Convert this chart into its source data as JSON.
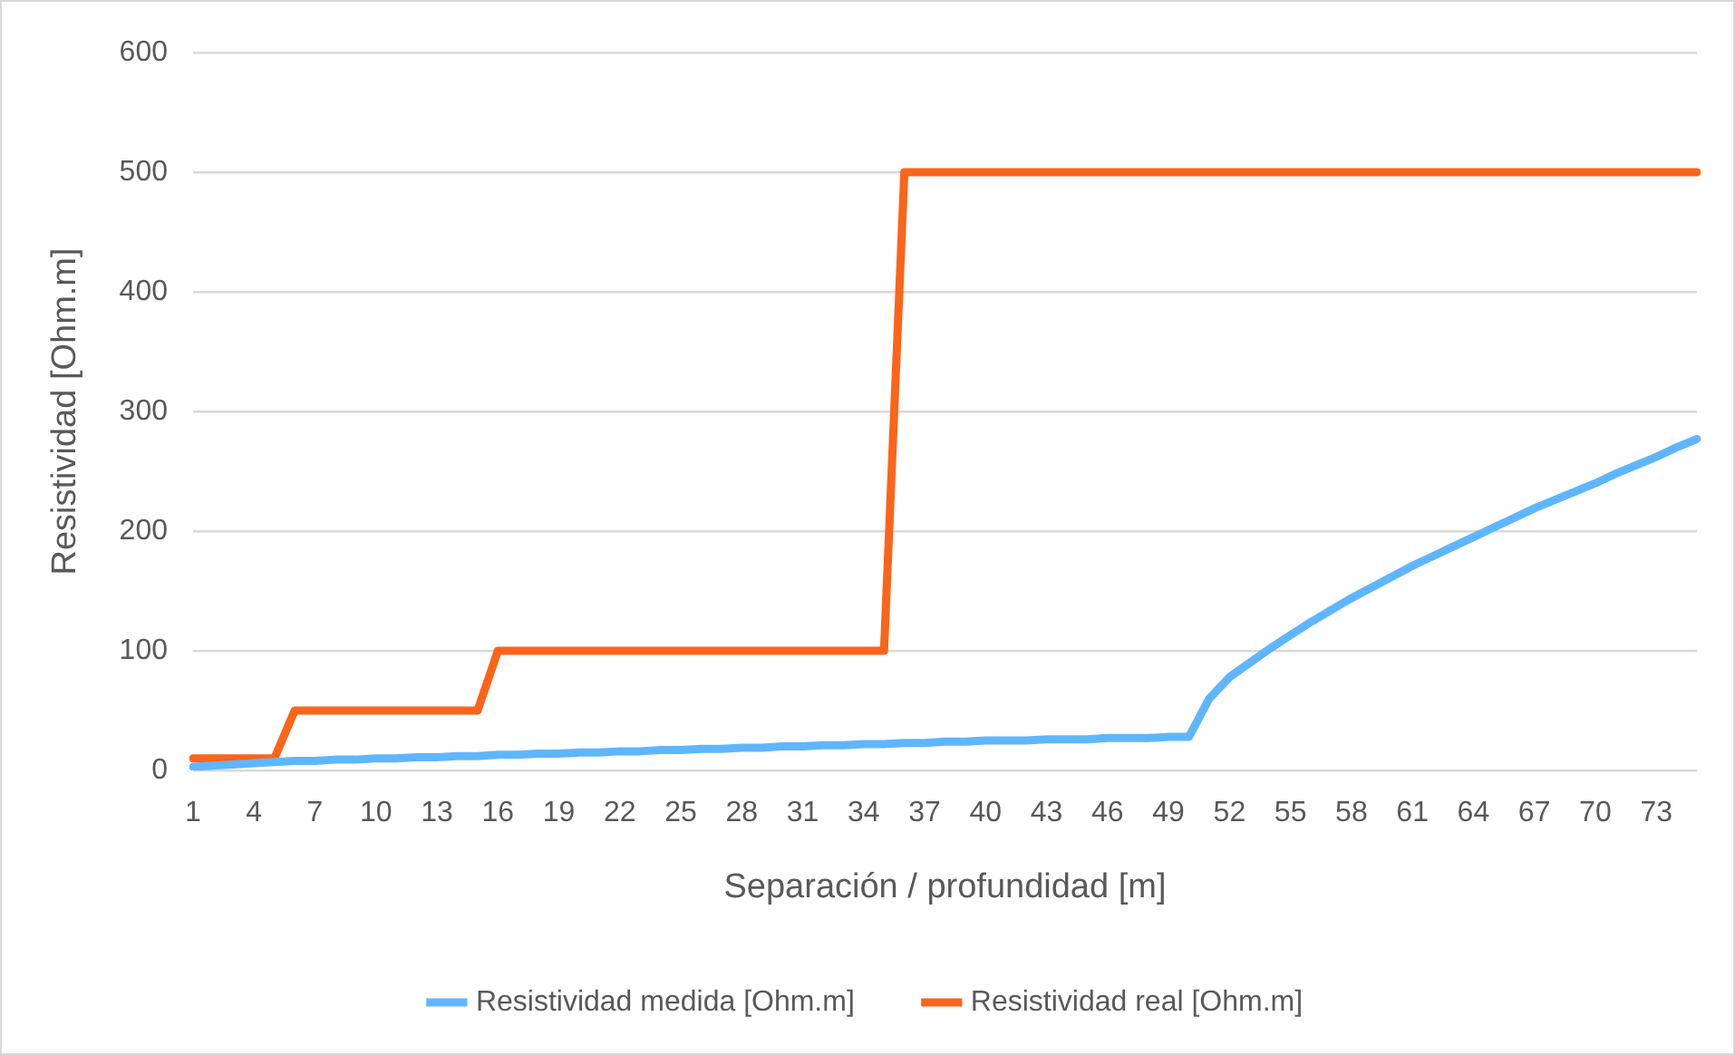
{
  "chart_data": {
    "type": "line",
    "xlabel": "Separación / profundidad [m]",
    "ylabel": "Resistividad [Ohm.m]",
    "categories": [
      "1",
      null,
      null,
      "4",
      null,
      null,
      "7",
      null,
      null,
      "10",
      null,
      null,
      "13",
      null,
      null,
      "16",
      null,
      null,
      "19",
      null,
      null,
      "22",
      null,
      null,
      "25",
      null,
      null,
      "28",
      null,
      null,
      "31",
      null,
      null,
      "34",
      null,
      null,
      "37",
      null,
      null,
      "40",
      null,
      null,
      "43",
      null,
      null,
      "46",
      null,
      null,
      "49",
      null,
      null,
      "52",
      null,
      null,
      "55",
      null,
      null,
      "58",
      null,
      null,
      "61",
      null,
      null,
      "64",
      null,
      null,
      "67",
      null,
      null,
      "70",
      null,
      null,
      "73",
      null,
      null
    ],
    "series": [
      {
        "name": "Resistividad medida [Ohm.m]",
        "color": "#5fb6ff",
        "values": [
          3,
          4,
          5,
          6,
          7,
          8,
          8,
          9,
          9,
          10,
          10,
          11,
          11,
          12,
          12,
          13,
          13,
          14,
          14,
          15,
          15,
          16,
          16,
          17,
          17,
          18,
          18,
          19,
          19,
          20,
          20,
          21,
          21,
          22,
          22,
          23,
          23,
          24,
          24,
          25,
          25,
          25,
          26,
          26,
          26,
          27,
          27,
          27,
          28,
          28,
          60,
          78,
          90,
          102,
          113,
          124,
          134,
          144,
          153,
          162,
          171,
          179,
          187,
          195,
          203,
          211,
          219,
          226,
          233,
          240,
          248,
          255,
          262,
          270,
          277
        ]
      },
      {
        "name": "Resistividad real [Ohm.m]",
        "color": "#fc6419",
        "values": [
          10,
          10,
          10,
          10,
          10,
          50,
          50,
          50,
          50,
          50,
          50,
          50,
          50,
          50,
          50,
          100,
          100,
          100,
          100,
          100,
          100,
          100,
          100,
          100,
          100,
          100,
          100,
          100,
          100,
          100,
          100,
          100,
          100,
          100,
          100,
          500,
          500,
          500,
          500,
          500,
          500,
          500,
          500,
          500,
          500,
          500,
          500,
          500,
          500,
          500,
          500,
          500,
          500,
          500,
          500,
          500,
          500,
          500,
          500,
          500,
          500,
          500,
          500,
          500,
          500,
          500,
          500,
          500,
          500,
          500,
          500,
          500,
          500,
          500,
          500
        ]
      }
    ],
    "ylim": [
      0,
      600
    ],
    "yticks": [
      0,
      100,
      200,
      300,
      400,
      500,
      600
    ],
    "grid": "y",
    "legend": "bottom",
    "marker": "none",
    "line_style": "solid"
  }
}
